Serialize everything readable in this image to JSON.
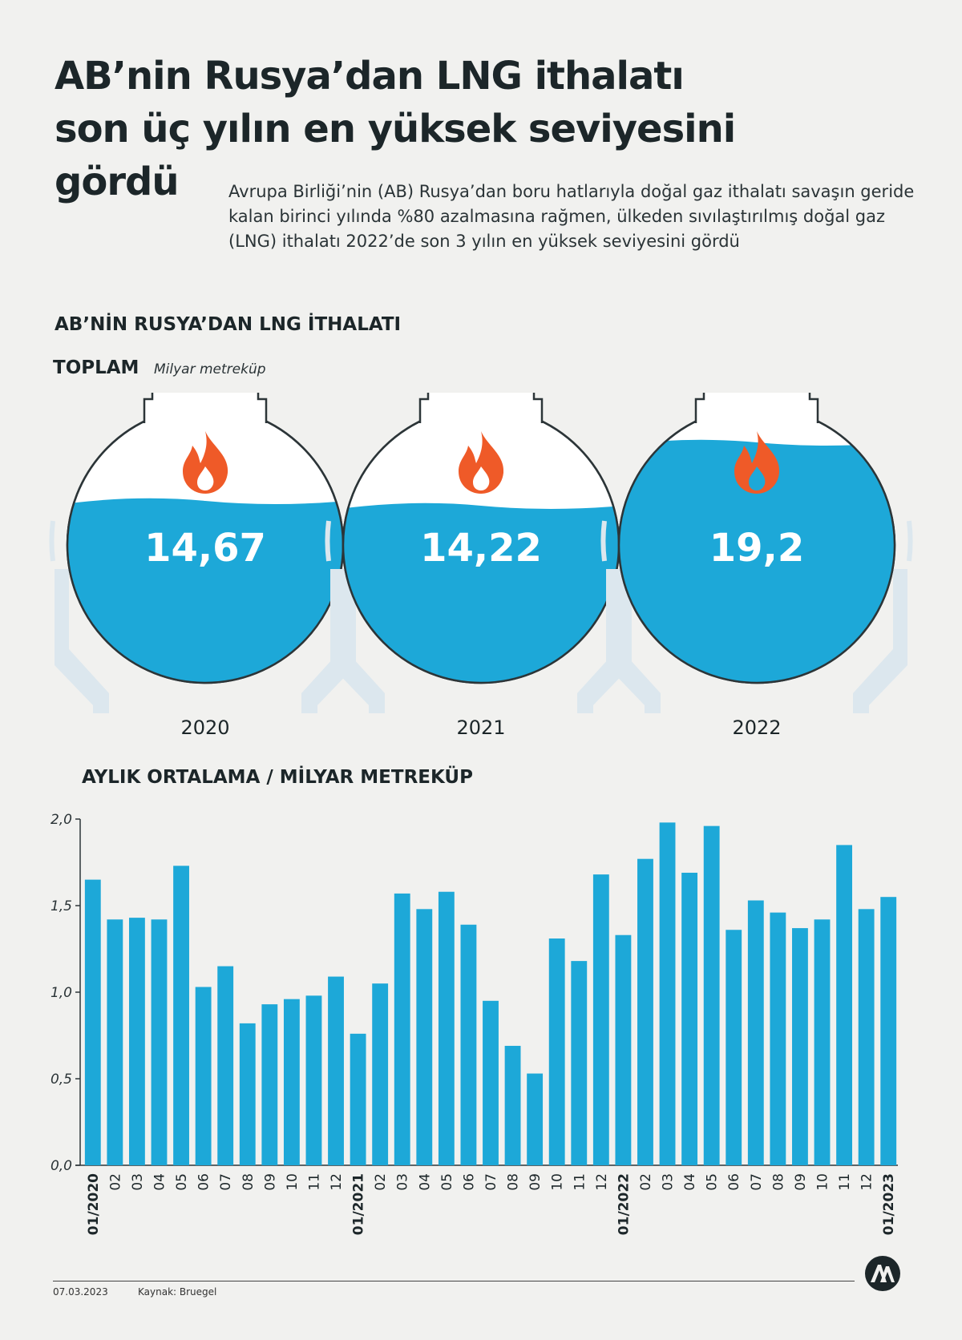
{
  "title": {
    "line1": "AB’nin Rusya’dan LNG ithalatı",
    "line2": "son üç yılın en yüksek seviyesini",
    "line3": "gördü"
  },
  "subtitle": "Avrupa Birliği’nin (AB) Rusya’dan boru hatlarıyla doğal gaz ithalatı savaşın geride kalan birinci yılında %80 azalmasına rağmen, ülkeden sıvılaştırılmış doğal gaz (LNG) ithalatı 2022’de son 3 yılın en yüksek seviyesini gördü",
  "section1_title": "AB’NİN RUSYA’DAN LNG İTHALATI",
  "section1_sub": "TOPLAM",
  "section1_unit": "Milyar metreküp",
  "section2_title": "AYLIK ORTALAMA / MİLYAR METREKÜP",
  "footer": {
    "date": "07.03.2023",
    "source": "Kaynak: Bruegel"
  },
  "colors": {
    "water": "#1da8d8",
    "flame": "#ef5a28",
    "bar": "#1da8d8",
    "text": "#1c2629"
  },
  "chart_data": [
    {
      "type": "bar",
      "title": "AB’NİN RUSYA’DAN LNG İTHALATI",
      "subtitle": "TOPLAM",
      "ylabel": "Milyar metreküp",
      "categories": [
        "2020",
        "2021",
        "2022"
      ],
      "values": [
        14.67,
        14.22,
        19.2
      ],
      "value_labels": [
        "14,67",
        "14,22",
        "19,2"
      ],
      "ylim": [
        0,
        19.2
      ]
    },
    {
      "type": "bar",
      "title": "AYLIK ORTALAMA / MİLYAR METREKÜP",
      "categories": [
        "01/2020",
        "02",
        "03",
        "04",
        "05",
        "06",
        "07",
        "08",
        "09",
        "10",
        "11",
        "12",
        "01/2021",
        "02",
        "03",
        "04",
        "05",
        "06",
        "07",
        "08",
        "09",
        "10",
        "11",
        "12",
        "01/2022",
        "02",
        "03",
        "04",
        "05",
        "06",
        "07",
        "08",
        "09",
        "10",
        "11",
        "12",
        "01/2023"
      ],
      "bold_categories": [
        "01/2020",
        "01/2021",
        "01/2022",
        "01/2023"
      ],
      "values": [
        1.65,
        1.42,
        1.43,
        1.42,
        1.73,
        1.03,
        1.15,
        0.82,
        0.93,
        0.96,
        0.98,
        1.09,
        0.76,
        1.05,
        1.57,
        1.48,
        1.58,
        1.39,
        0.95,
        0.69,
        0.53,
        1.31,
        1.18,
        1.68,
        1.33,
        1.77,
        1.98,
        1.69,
        1.96,
        1.36,
        1.53,
        1.46,
        1.37,
        1.42,
        1.85,
        1.48,
        1.55
      ],
      "ylim": [
        0,
        2.0
      ],
      "yticks": [
        0,
        0.5,
        1.0,
        1.5,
        2.0
      ],
      "ytick_labels": [
        "0,0",
        "0,5",
        "1,0",
        "1,5",
        "2,0"
      ],
      "grid": false
    }
  ]
}
